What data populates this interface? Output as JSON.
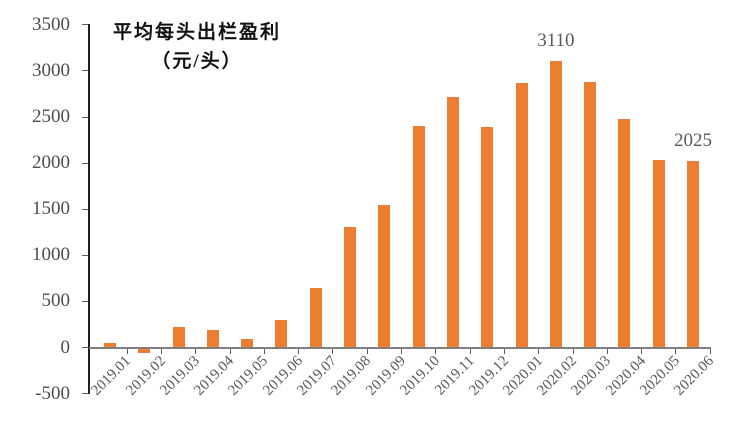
{
  "title": {
    "line1": "平均每头出栏盈利",
    "line2": "（元/头）"
  },
  "colors": {
    "bar": "#ED7D31",
    "axis_text": "#4d4d4d",
    "x_axis_text": "#595959",
    "zero_line": "#7f7f7f",
    "y_axis_line": "#1f1f1f",
    "background": "#ffffff",
    "title_text": "#111111"
  },
  "chart_data": {
    "type": "bar",
    "title": "平均每头出栏盈利（元/头）",
    "xlabel": "",
    "ylabel": "",
    "categories": [
      "2019.01",
      "2019.02",
      "2019.03",
      "2019.04",
      "2019.05",
      "2019.06",
      "2019.07",
      "2019.08",
      "2019.09",
      "2019.10",
      "2019.11",
      "2019.12",
      "2020.01",
      "2020.02",
      "2020.03",
      "2020.04",
      "2020.05",
      "2020.06"
    ],
    "values": [
      50,
      -50,
      225,
      190,
      90,
      300,
      650,
      1310,
      1550,
      2400,
      2715,
      2390,
      2865,
      3110,
      2880,
      2480,
      2030,
      2025
    ],
    "ylim": [
      -500,
      3500
    ],
    "yticks": [
      3500,
      3000,
      2500,
      2000,
      1500,
      1000,
      500,
      0,
      -500
    ],
    "ytick_labels": [
      "3500",
      "3000",
      "2500",
      "2000",
      "1500",
      "1000",
      "500",
      "0",
      "-500"
    ],
    "grid": false,
    "legend_position": "none",
    "data_labels": [
      {
        "category": "2020.02",
        "value": 3110,
        "text": "3110"
      },
      {
        "category": "2020.06",
        "value": 2025,
        "text": "2025"
      }
    ]
  }
}
